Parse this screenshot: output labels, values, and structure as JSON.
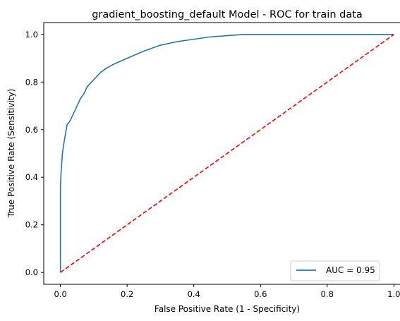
{
  "chart_data": {
    "type": "line",
    "title": "gradient_boosting_default Model - ROC for train data",
    "xlabel": "False Positive Rate (1 - Specificity)",
    "ylabel": "True Positive Rate (Sensitivity)",
    "xlim": [
      -0.05,
      1.05
    ],
    "ylim": [
      -0.05,
      1.05
    ],
    "x_ticks": [
      0.0,
      0.2,
      0.4,
      0.6,
      0.8,
      1.0
    ],
    "y_ticks": [
      0.0,
      0.2,
      0.4,
      0.6,
      0.8,
      1.0
    ],
    "x_tick_labels": [
      "0.0",
      "0.2",
      "0.4",
      "0.6",
      "0.8",
      "1.0"
    ],
    "y_tick_labels": [
      "0.0",
      "0.2",
      "0.4",
      "0.6",
      "0.8",
      "1.0"
    ],
    "grid": false,
    "legend_position": "lower-right",
    "series": [
      {
        "name": "AUC = 0.95",
        "color": "#1f77b4",
        "style": "solid",
        "x": [
          0.0,
          0.0,
          0.0,
          0.002,
          0.004,
          0.006,
          0.01,
          0.015,
          0.02,
          0.03,
          0.04,
          0.05,
          0.06,
          0.07,
          0.08,
          0.1,
          0.12,
          0.14,
          0.16,
          0.2,
          0.25,
          0.3,
          0.35,
          0.4,
          0.45,
          0.5,
          0.55,
          0.6,
          0.7,
          0.8,
          0.9,
          1.0
        ],
        "y": [
          0.0,
          0.3,
          0.36,
          0.42,
          0.46,
          0.5,
          0.54,
          0.58,
          0.62,
          0.64,
          0.67,
          0.7,
          0.73,
          0.75,
          0.78,
          0.81,
          0.84,
          0.86,
          0.875,
          0.9,
          0.93,
          0.955,
          0.97,
          0.98,
          0.99,
          0.995,
          1.0,
          1.0,
          1.0,
          1.0,
          1.0,
          1.0
        ]
      },
      {
        "name": "",
        "color": "#ff0000",
        "style": "dashed",
        "x": [
          0.0,
          1.0
        ],
        "y": [
          0.0,
          1.0
        ]
      }
    ]
  }
}
